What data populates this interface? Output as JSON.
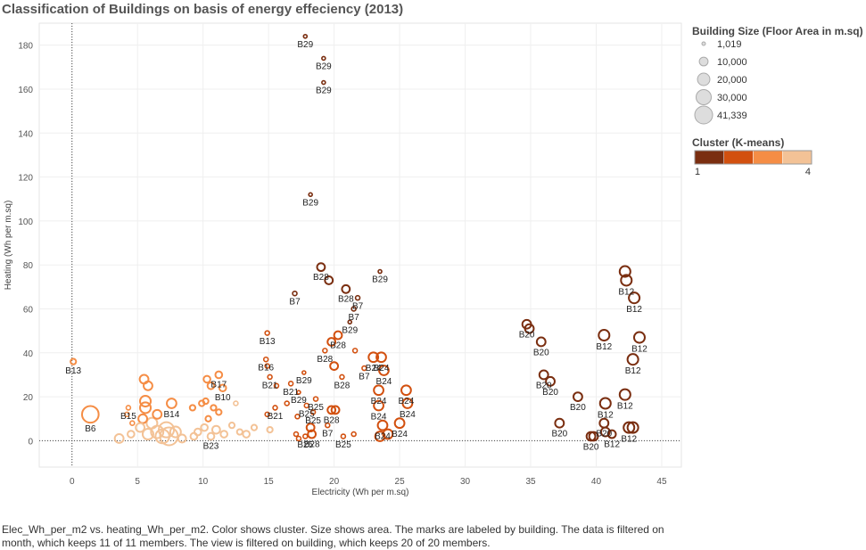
{
  "chart_data": {
    "type": "scatter",
    "title": "Classification of Buildings on basis of energy effeciency (2013)",
    "xlabel": "Electricity (Wh per m.sq)",
    "ylabel": "Heating (Wh per m.sq)",
    "xlim": [
      -2.5,
      46.5
    ],
    "ylim": [
      -12,
      190
    ],
    "xticks": [
      0,
      5,
      10,
      15,
      20,
      25,
      30,
      35,
      40,
      45
    ],
    "yticks": [
      0,
      20,
      40,
      60,
      80,
      100,
      120,
      140,
      160,
      180
    ],
    "reference_lines": {
      "x": 0,
      "y": 0
    },
    "size_legend": {
      "title": "Building Size (Floor Area in m.sq)",
      "entries": [
        {
          "label": "1,019",
          "area": 1019
        },
        {
          "label": "10,000",
          "area": 10000
        },
        {
          "label": "20,000",
          "area": 20000
        },
        {
          "label": "30,000",
          "area": 30000
        },
        {
          "label": "41,339",
          "area": 41339
        }
      ]
    },
    "color_legend": {
      "title": "Cluster (K-means)",
      "min_label": "1",
      "max_label": "4",
      "colors": [
        "#7a2e10",
        "#d2500f",
        "#f58d45",
        "#f3c296"
      ]
    },
    "points": [
      {
        "x": 17.8,
        "y": 184,
        "cluster": 1,
        "area": 1200,
        "label": "B29"
      },
      {
        "x": 19.2,
        "y": 174,
        "cluster": 1,
        "area": 1200,
        "label": "B29"
      },
      {
        "x": 19.2,
        "y": 163,
        "cluster": 1,
        "area": 1200,
        "label": "B29"
      },
      {
        "x": 18.2,
        "y": 112,
        "cluster": 1,
        "area": 1200,
        "label": "B29"
      },
      {
        "x": 19,
        "y": 79,
        "cluster": 1,
        "area": 8000,
        "label": "B28"
      },
      {
        "x": 19.6,
        "y": 73,
        "cluster": 1,
        "area": 8000,
        "label": ""
      },
      {
        "x": 23.5,
        "y": 77,
        "cluster": 1,
        "area": 1200,
        "label": "B29"
      },
      {
        "x": 17,
        "y": 67,
        "cluster": 1,
        "area": 2500,
        "label": "B7"
      },
      {
        "x": 20.9,
        "y": 69,
        "cluster": 1,
        "area": 8000,
        "label": "B28"
      },
      {
        "x": 21.8,
        "y": 65,
        "cluster": 1,
        "area": 2500,
        "label": "B7"
      },
      {
        "x": 21.5,
        "y": 60,
        "cluster": 1,
        "area": 2500,
        "label": "B7"
      },
      {
        "x": 21.2,
        "y": 54,
        "cluster": 1,
        "area": 1200,
        "label": "B29"
      },
      {
        "x": 20.3,
        "y": 48,
        "cluster": 2,
        "area": 8000,
        "label": "B28"
      },
      {
        "x": 14.9,
        "y": 49,
        "cluster": 2,
        "area": 2500,
        "label": "B13"
      },
      {
        "x": 19.8,
        "y": 45,
        "cluster": 2,
        "area": 8000,
        "label": ""
      },
      {
        "x": 19.3,
        "y": 41,
        "cluster": 2,
        "area": 2500,
        "label": "B28"
      },
      {
        "x": 21.6,
        "y": 41,
        "cluster": 2,
        "area": 2500,
        "label": ""
      },
      {
        "x": 23,
        "y": 38,
        "cluster": 2,
        "area": 12000,
        "label": "B24"
      },
      {
        "x": 23.6,
        "y": 38,
        "cluster": 2,
        "area": 12000,
        "label": "B24"
      },
      {
        "x": 14.8,
        "y": 37,
        "cluster": 2,
        "area": 2500,
        "label": "B16"
      },
      {
        "x": 14.9,
        "y": 34,
        "cluster": 2,
        "area": 2500,
        "label": ""
      },
      {
        "x": 20,
        "y": 34,
        "cluster": 2,
        "area": 8000,
        "label": ""
      },
      {
        "x": 22.3,
        "y": 33,
        "cluster": 2,
        "area": 2500,
        "label": "B7"
      },
      {
        "x": 23.8,
        "y": 32,
        "cluster": 2,
        "area": 12000,
        "label": "B24"
      },
      {
        "x": 17.7,
        "y": 31,
        "cluster": 2,
        "area": 1200,
        "label": "B29"
      },
      {
        "x": 20.6,
        "y": 29,
        "cluster": 2,
        "area": 2500,
        "label": "B28"
      },
      {
        "x": 15.1,
        "y": 29,
        "cluster": 2,
        "area": 2500,
        "label": "B21"
      },
      {
        "x": 16.7,
        "y": 26,
        "cluster": 2,
        "area": 2500,
        "label": "B21"
      },
      {
        "x": 15.6,
        "y": 25,
        "cluster": 2,
        "area": 2500,
        "label": ""
      },
      {
        "x": 17.3,
        "y": 22,
        "cluster": 2,
        "area": 1200,
        "label": "B29"
      },
      {
        "x": 18.6,
        "y": 19,
        "cluster": 2,
        "area": 2500,
        "label": "B25"
      },
      {
        "x": 23.4,
        "y": 23,
        "cluster": 2,
        "area": 12000,
        "label": "B24"
      },
      {
        "x": 25.5,
        "y": 23,
        "cluster": 2,
        "area": 12000,
        "label": "B24"
      },
      {
        "x": 25.6,
        "y": 17,
        "cluster": 2,
        "area": 12000,
        "label": "B24"
      },
      {
        "x": 23.4,
        "y": 16,
        "cluster": 2,
        "area": 12000,
        "label": "B24"
      },
      {
        "x": 19.8,
        "y": 14,
        "cluster": 2,
        "area": 8000,
        "label": "B28"
      },
      {
        "x": 20.1,
        "y": 14,
        "cluster": 2,
        "area": 8000,
        "label": ""
      },
      {
        "x": 17.9,
        "y": 16,
        "cluster": 2,
        "area": 2500,
        "label": "B25"
      },
      {
        "x": 18.4,
        "y": 13,
        "cluster": 2,
        "area": 2500,
        "label": "B25"
      },
      {
        "x": 15.5,
        "y": 15,
        "cluster": 2,
        "area": 2500,
        "label": "B21"
      },
      {
        "x": 14.9,
        "y": 12,
        "cluster": 2,
        "area": 2500,
        "label": ""
      },
      {
        "x": 16.4,
        "y": 17,
        "cluster": 2,
        "area": 2500,
        "label": ""
      },
      {
        "x": 17.2,
        "y": 11,
        "cluster": 2,
        "area": 2500,
        "label": ""
      },
      {
        "x": 19.5,
        "y": 7,
        "cluster": 2,
        "area": 2500,
        "label": "B7"
      },
      {
        "x": 23.7,
        "y": 7,
        "cluster": 2,
        "area": 12000,
        "label": "B24"
      },
      {
        "x": 25,
        "y": 8,
        "cluster": 2,
        "area": 12000,
        "label": "B24"
      },
      {
        "x": 18.2,
        "y": 6,
        "cluster": 2,
        "area": 8000,
        "label": ""
      },
      {
        "x": 18.3,
        "y": 3,
        "cluster": 2,
        "area": 8000,
        "label": "B28"
      },
      {
        "x": 17.8,
        "y": 2,
        "cluster": 2,
        "area": 2500,
        "label": "B25"
      },
      {
        "x": 17.1,
        "y": 3,
        "cluster": 2,
        "area": 2500,
        "label": ""
      },
      {
        "x": 21.5,
        "y": 3,
        "cluster": 2,
        "area": 2500,
        "label": ""
      },
      {
        "x": 20.7,
        "y": 2,
        "cluster": 2,
        "area": 2500,
        "label": "B25"
      },
      {
        "x": 23.5,
        "y": 2,
        "cluster": 2,
        "area": 12000,
        "label": ""
      },
      {
        "x": 24.1,
        "y": 3,
        "cluster": 2,
        "area": 12000,
        "label": ""
      },
      {
        "x": 17.3,
        "y": 1,
        "cluster": 2,
        "area": 2500,
        "label": ""
      },
      {
        "x": 34.7,
        "y": 53,
        "cluster": 1,
        "area": 10000,
        "label": "B20"
      },
      {
        "x": 34.9,
        "y": 51,
        "cluster": 1,
        "area": 10000,
        "label": ""
      },
      {
        "x": 35.8,
        "y": 45,
        "cluster": 1,
        "area": 10000,
        "label": "B20"
      },
      {
        "x": 36,
        "y": 30,
        "cluster": 1,
        "area": 10000,
        "label": "B20"
      },
      {
        "x": 36.5,
        "y": 27,
        "cluster": 1,
        "area": 10000,
        "label": "B20"
      },
      {
        "x": 38.6,
        "y": 20,
        "cluster": 1,
        "area": 10000,
        "label": "B20"
      },
      {
        "x": 37.2,
        "y": 8,
        "cluster": 1,
        "area": 10000,
        "label": "B20"
      },
      {
        "x": 39.6,
        "y": 2,
        "cluster": 1,
        "area": 10000,
        "label": "B20"
      },
      {
        "x": 39.8,
        "y": 2,
        "cluster": 1,
        "area": 10000,
        "label": ""
      },
      {
        "x": 40.6,
        "y": 8,
        "cluster": 1,
        "area": 10000,
        "label": "B20"
      },
      {
        "x": 40.7,
        "y": 4,
        "cluster": 1,
        "area": 10000,
        "label": ""
      },
      {
        "x": 42.2,
        "y": 77,
        "cluster": 1,
        "area": 15000,
        "label": ""
      },
      {
        "x": 42.3,
        "y": 73,
        "cluster": 1,
        "area": 15000,
        "label": "B12"
      },
      {
        "x": 42.9,
        "y": 65,
        "cluster": 1,
        "area": 15000,
        "label": "B12"
      },
      {
        "x": 40.6,
        "y": 48,
        "cluster": 1,
        "area": 15000,
        "label": "B12"
      },
      {
        "x": 43.3,
        "y": 47,
        "cluster": 1,
        "area": 15000,
        "label": "B12"
      },
      {
        "x": 42.8,
        "y": 37,
        "cluster": 1,
        "area": 15000,
        "label": "B12"
      },
      {
        "x": 42.2,
        "y": 21,
        "cluster": 1,
        "area": 15000,
        "label": "B12"
      },
      {
        "x": 40.7,
        "y": 17,
        "cluster": 1,
        "area": 15000,
        "label": "B12"
      },
      {
        "x": 42.5,
        "y": 6,
        "cluster": 1,
        "area": 15000,
        "label": "B12"
      },
      {
        "x": 42.8,
        "y": 6,
        "cluster": 1,
        "area": 15000,
        "label": ""
      },
      {
        "x": 41.2,
        "y": 3,
        "cluster": 1,
        "area": 8000,
        "label": "B12"
      },
      {
        "x": 0.1,
        "y": 36,
        "cluster": 3,
        "area": 4000,
        "label": "B13"
      },
      {
        "x": 1.4,
        "y": 12,
        "cluster": 3,
        "area": 36000,
        "label": "B6"
      },
      {
        "x": 4.3,
        "y": 15,
        "cluster": 3,
        "area": 2500,
        "label": "B15"
      },
      {
        "x": 4.2,
        "y": 12,
        "cluster": 3,
        "area": 2500,
        "label": ""
      },
      {
        "x": 4.6,
        "y": 8,
        "cluster": 3,
        "area": 2500,
        "label": ""
      },
      {
        "x": 5.5,
        "y": 28,
        "cluster": 3,
        "area": 10000,
        "label": ""
      },
      {
        "x": 5.8,
        "y": 25,
        "cluster": 3,
        "area": 10000,
        "label": ""
      },
      {
        "x": 5.6,
        "y": 18,
        "cluster": 3,
        "area": 15000,
        "label": ""
      },
      {
        "x": 5.6,
        "y": 15,
        "cluster": 3,
        "area": 15000,
        "label": ""
      },
      {
        "x": 5.4,
        "y": 10,
        "cluster": 3,
        "area": 10000,
        "label": ""
      },
      {
        "x": 6.5,
        "y": 12,
        "cluster": 3,
        "area": 10000,
        "label": ""
      },
      {
        "x": 7.6,
        "y": 17,
        "cluster": 3,
        "area": 12000,
        "label": "B14"
      },
      {
        "x": 9.2,
        "y": 15,
        "cluster": 3,
        "area": 4000,
        "label": ""
      },
      {
        "x": 9.9,
        "y": 17,
        "cluster": 3,
        "area": 4000,
        "label": ""
      },
      {
        "x": 10.3,
        "y": 28,
        "cluster": 3,
        "area": 6000,
        "label": ""
      },
      {
        "x": 10.6,
        "y": 25,
        "cluster": 3,
        "area": 6000,
        "label": ""
      },
      {
        "x": 11.2,
        "y": 30,
        "cluster": 3,
        "area": 6000,
        "label": "B17"
      },
      {
        "x": 11.5,
        "y": 24,
        "cluster": 3,
        "area": 6000,
        "label": "B10"
      },
      {
        "x": 10.2,
        "y": 18,
        "cluster": 3,
        "area": 4000,
        "label": ""
      },
      {
        "x": 10.8,
        "y": 15,
        "cluster": 3,
        "area": 4000,
        "label": ""
      },
      {
        "x": 11.2,
        "y": 13,
        "cluster": 3,
        "area": 4000,
        "label": ""
      },
      {
        "x": 10.4,
        "y": 10,
        "cluster": 3,
        "area": 4000,
        "label": ""
      },
      {
        "x": 3.6,
        "y": 1,
        "cluster": 4,
        "area": 10000,
        "label": ""
      },
      {
        "x": 4.5,
        "y": 3,
        "cluster": 4,
        "area": 6000,
        "label": ""
      },
      {
        "x": 5.2,
        "y": 6,
        "cluster": 4,
        "area": 10000,
        "label": ""
      },
      {
        "x": 5.8,
        "y": 3,
        "cluster": 4,
        "area": 15000,
        "label": ""
      },
      {
        "x": 6.1,
        "y": 8,
        "cluster": 4,
        "area": 15000,
        "label": ""
      },
      {
        "x": 6.5,
        "y": 4,
        "cluster": 4,
        "area": 20000,
        "label": ""
      },
      {
        "x": 6.9,
        "y": 2,
        "cluster": 4,
        "area": 25000,
        "label": ""
      },
      {
        "x": 7.2,
        "y": 5,
        "cluster": 4,
        "area": 30000,
        "label": ""
      },
      {
        "x": 7.4,
        "y": 2,
        "cluster": 4,
        "area": 41339,
        "label": ""
      },
      {
        "x": 7.9,
        "y": 4,
        "cluster": 4,
        "area": 15000,
        "label": ""
      },
      {
        "x": 8.4,
        "y": 1,
        "cluster": 4,
        "area": 8000,
        "label": ""
      },
      {
        "x": 9.3,
        "y": 2,
        "cluster": 4,
        "area": 6000,
        "label": ""
      },
      {
        "x": 9.6,
        "y": 4,
        "cluster": 4,
        "area": 6000,
        "label": ""
      },
      {
        "x": 10.1,
        "y": 6,
        "cluster": 4,
        "area": 6000,
        "label": ""
      },
      {
        "x": 10.6,
        "y": 2,
        "cluster": 4,
        "area": 6000,
        "label": "B23"
      },
      {
        "x": 11.0,
        "y": 5,
        "cluster": 4,
        "area": 8000,
        "label": ""
      },
      {
        "x": 11.6,
        "y": 3,
        "cluster": 4,
        "area": 6000,
        "label": ""
      },
      {
        "x": 12.2,
        "y": 7,
        "cluster": 4,
        "area": 4000,
        "label": ""
      },
      {
        "x": 12.8,
        "y": 4,
        "cluster": 4,
        "area": 4000,
        "label": ""
      },
      {
        "x": 13.3,
        "y": 3,
        "cluster": 4,
        "area": 6000,
        "label": ""
      },
      {
        "x": 13.9,
        "y": 6,
        "cluster": 4,
        "area": 4000,
        "label": ""
      },
      {
        "x": 15.1,
        "y": 5,
        "cluster": 4,
        "area": 4000,
        "label": ""
      },
      {
        "x": 12.5,
        "y": 17,
        "cluster": 4,
        "area": 2500,
        "label": ""
      }
    ]
  },
  "caption": "Elec_Wh_per_m2 vs. heating_Wh_per_m2.  Color shows cluster.  Size shows area.  The marks are labeled by building. The data is filtered on month, which keeps 11 of 11 members. The view is filtered on building, which keeps 20 of 20 members."
}
